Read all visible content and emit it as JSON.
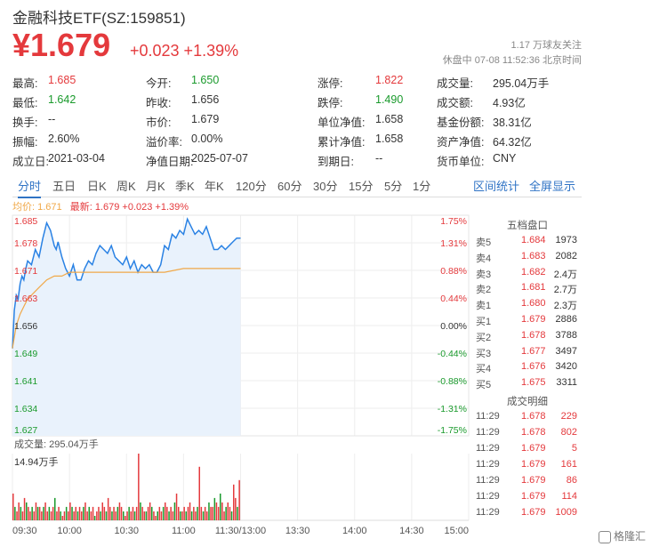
{
  "header": {
    "title": "金融科技ETF(SZ:159851)",
    "price": "¥1.679",
    "change": "+0.023 +1.39%",
    "followers": "1.17 万球友关注",
    "status": "休盘中 07-08 11:52:36 北京时间"
  },
  "stats": [
    {
      "label": "最高:",
      "value": "1.685",
      "cls": "red"
    },
    {
      "label": "今开:",
      "value": "1.650",
      "cls": "green"
    },
    {
      "label": "涨停:",
      "value": "1.822",
      "cls": "red"
    },
    {
      "label": "成交量:",
      "value": "295.04万手",
      "cls": ""
    },
    {
      "label": "最低:",
      "value": "1.642",
      "cls": "green"
    },
    {
      "label": "昨收:",
      "value": "1.656",
      "cls": ""
    },
    {
      "label": "跌停:",
      "value": "1.490",
      "cls": "green"
    },
    {
      "label": "成交额:",
      "value": "4.93亿",
      "cls": ""
    },
    {
      "label": "换手:",
      "value": "--",
      "cls": ""
    },
    {
      "label": "市价:",
      "value": "1.679",
      "cls": ""
    },
    {
      "label": "单位净值:",
      "value": "1.658",
      "cls": ""
    },
    {
      "label": "基金份额:",
      "value": "38.31亿",
      "cls": ""
    },
    {
      "label": "振幅:",
      "value": "2.60%",
      "cls": ""
    },
    {
      "label": "溢价率:",
      "value": "0.00%",
      "cls": ""
    },
    {
      "label": "累计净值:",
      "value": "1.658",
      "cls": ""
    },
    {
      "label": "资产净值:",
      "value": "64.32亿",
      "cls": ""
    },
    {
      "label": "成立日:",
      "value": "2021-03-04",
      "cls": ""
    },
    {
      "label": "净值日期:",
      "value": "2025-07-07",
      "cls": ""
    },
    {
      "label": "到期日:",
      "value": "--",
      "cls": ""
    },
    {
      "label": "货币单位:",
      "value": "CNY",
      "cls": ""
    }
  ],
  "tabs": [
    "分时",
    "五日",
    "日K",
    "周K",
    "月K",
    "季K",
    "年K",
    "120分",
    "60分",
    "30分",
    "15分",
    "5分",
    "1分"
  ],
  "active_tab": "分时",
  "tab_links": [
    "区间统计",
    "全屏显示"
  ],
  "legend": {
    "avg_label": "均价: 1.671",
    "latest_label": "最新: 1.679 +0.023 +1.39%"
  },
  "order_book": {
    "title": "五档盘口",
    "asks": [
      {
        "label": "卖5",
        "price": "1.684",
        "volume": "1973"
      },
      {
        "label": "卖4",
        "price": "1.683",
        "volume": "2082"
      },
      {
        "label": "卖3",
        "price": "1.682",
        "volume": "2.4万"
      },
      {
        "label": "卖2",
        "price": "1.681",
        "volume": "2.7万"
      },
      {
        "label": "卖1",
        "price": "1.680",
        "volume": "2.3万"
      }
    ],
    "bids": [
      {
        "label": "买1",
        "price": "1.679",
        "volume": "2886"
      },
      {
        "label": "买2",
        "price": "1.678",
        "volume": "3788"
      },
      {
        "label": "买3",
        "price": "1.677",
        "volume": "3497"
      },
      {
        "label": "买4",
        "price": "1.676",
        "volume": "3420"
      },
      {
        "label": "买5",
        "price": "1.675",
        "volume": "3311"
      }
    ],
    "trades_title": "成交明细",
    "trades": [
      {
        "time": "11:29",
        "price": "1.678",
        "volume": "229"
      },
      {
        "time": "11:29",
        "price": "1.678",
        "volume": "802"
      },
      {
        "time": "11:29",
        "price": "1.679",
        "volume": "5"
      },
      {
        "time": "11:29",
        "price": "1.679",
        "volume": "161"
      },
      {
        "time": "11:29",
        "price": "1.679",
        "volume": "86"
      },
      {
        "time": "11:29",
        "price": "1.679",
        "volume": "114"
      },
      {
        "time": "11:29",
        "price": "1.679",
        "volume": "1009"
      }
    ]
  },
  "volume_panel": {
    "label": "成交量: 295.04万手",
    "max_label": "14.94万手"
  },
  "watermark": "格隆汇",
  "colors": {
    "up": "#e4393c",
    "down": "#1a9a2c",
    "price_line": "#2a82e4",
    "avg_line": "#f0a848",
    "accent": "#2f73c5"
  },
  "chart_data": {
    "type": "line",
    "title": "",
    "ylabel_left": [
      "1.685",
      "1.678",
      "1.671",
      "1.663",
      "1.656",
      "1.649",
      "1.641",
      "1.634",
      "1.627"
    ],
    "ylabel_right": [
      "1.75%",
      "1.31%",
      "0.88%",
      "0.44%",
      "0.00%",
      "-0.44%",
      "-0.88%",
      "-1.31%",
      "-1.75%"
    ],
    "ylim": [
      1.627,
      1.685
    ],
    "prev_close": 1.656,
    "x_ticks": [
      "09:30",
      "10:00",
      "10:30",
      "11:00",
      "11:30/13:00",
      "13:30",
      "14:00",
      "14:30",
      "15:00"
    ],
    "x_minutes_total": 240,
    "series": [
      {
        "name": "最新",
        "minutes": [
          0,
          1,
          2,
          3,
          4,
          5,
          6,
          7,
          8,
          10,
          12,
          14,
          16,
          18,
          20,
          21,
          22,
          23,
          24,
          26,
          28,
          30,
          32,
          34,
          36,
          38,
          40,
          42,
          44,
          46,
          48,
          50,
          52,
          54,
          56,
          58,
          60,
          62,
          64,
          66,
          68,
          70,
          72,
          74,
          76,
          78,
          80,
          82,
          84,
          86,
          88,
          90,
          92,
          94,
          96,
          98,
          100,
          102,
          104,
          106,
          108,
          110,
          112,
          114,
          116,
          118,
          120
        ],
        "values": [
          1.65,
          1.66,
          1.664,
          1.663,
          1.667,
          1.669,
          1.668,
          1.671,
          1.673,
          1.672,
          1.676,
          1.674,
          1.679,
          1.683,
          1.681,
          1.679,
          1.677,
          1.676,
          1.678,
          1.674,
          1.671,
          1.669,
          1.672,
          1.668,
          1.668,
          1.671,
          1.673,
          1.672,
          1.675,
          1.677,
          1.676,
          1.675,
          1.677,
          1.674,
          1.673,
          1.672,
          1.674,
          1.671,
          1.673,
          1.67,
          1.672,
          1.671,
          1.672,
          1.67,
          1.67,
          1.672,
          1.677,
          1.676,
          1.68,
          1.679,
          1.681,
          1.68,
          1.684,
          1.682,
          1.68,
          1.681,
          1.68,
          1.682,
          1.679,
          1.676,
          1.676,
          1.677,
          1.676,
          1.677,
          1.678,
          1.679,
          1.679
        ]
      },
      {
        "name": "均价",
        "minutes": [
          0,
          2,
          4,
          6,
          8,
          10,
          14,
          18,
          22,
          26,
          30,
          40,
          50,
          60,
          70,
          80,
          90,
          100,
          110,
          120
        ],
        "values": [
          1.65,
          1.656,
          1.659,
          1.661,
          1.663,
          1.664,
          1.666,
          1.668,
          1.669,
          1.669,
          1.67,
          1.67,
          1.67,
          1.67,
          1.67,
          1.67,
          1.671,
          1.671,
          1.671,
          1.671
        ]
      }
    ],
    "volume": {
      "ylim_label": "14.94万手",
      "max": 14.94,
      "values": [
        6,
        3,
        2,
        4,
        3,
        2,
        5,
        4,
        3,
        2,
        3,
        2,
        4,
        3,
        3,
        2,
        3,
        4,
        2,
        3,
        2,
        3,
        5,
        2,
        3,
        2,
        1,
        2,
        3,
        2,
        4,
        3,
        2,
        3,
        2,
        3,
        2,
        3,
        4,
        2,
        3,
        2,
        3,
        1,
        2,
        3,
        2,
        4,
        3,
        2,
        5,
        3,
        2,
        3,
        2,
        3,
        4,
        3,
        2,
        1,
        2,
        3,
        2,
        3,
        2,
        3,
        14.94,
        4,
        3,
        2,
        2,
        3,
        4,
        3,
        2,
        1,
        2,
        3,
        2,
        3,
        4,
        3,
        2,
        3,
        2,
        4,
        6,
        3,
        2,
        2,
        3,
        2,
        3,
        4,
        2,
        3,
        2,
        3,
        12,
        3,
        2,
        3,
        2,
        4,
        3,
        3,
        5,
        4,
        3,
        6,
        4,
        2,
        3,
        4,
        3,
        2,
        8,
        5,
        3,
        9
      ]
    }
  }
}
